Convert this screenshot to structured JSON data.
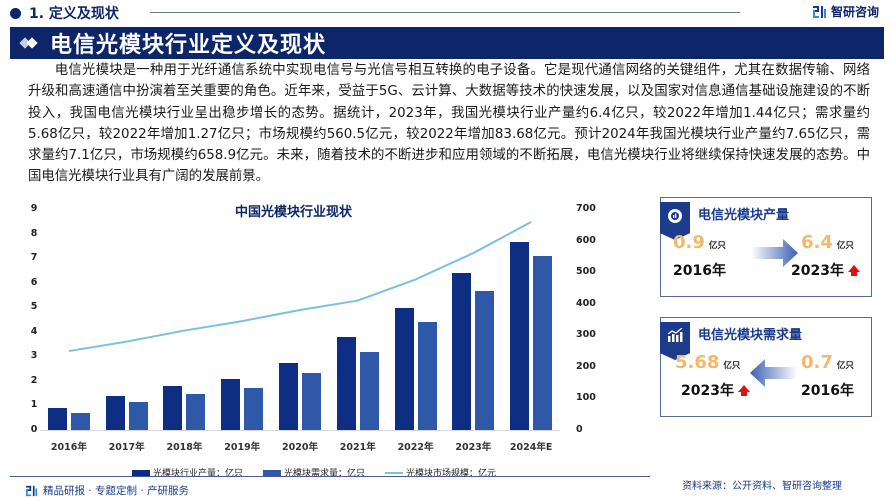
{
  "header": {
    "section_label": "1. 定义及现状",
    "brand": "智研咨询",
    "title": "电信光模块行业定义及现状"
  },
  "paragraph": "电信光模块是一种用于光纤通信系统中实现电信号与光信号相互转换的电子设备。它是现代通信网络的关键组件，尤其在数据传输、网络升级和高速通信中扮演着至关重要的角色。近年来，受益于5G、云计算、大数据等技术的快速发展，以及国家对信息通信基础设施建设的不断投入，我国电信光模块行业呈出稳步增长的态势。据统计，2023年，我国光模块行业产量约6.4亿只，较2022年增加1.44亿只；需求量约5.68亿只，较2022年增加1.27亿只；市场规模约560.5亿元，较2022年增加83.68亿元。预计2024年我国光模块行业产量约7.65亿只，需求量约7.1亿只，市场规模约658.9亿元。未来，随着技术的不断进步和应用领域的不断拓展，电信光模块行业将继续保持快速发展的态势。中国电信光模块行业具有广阔的发展前景。",
  "chart_data": {
    "type": "bar",
    "title": "中国光模块行业现状",
    "categories": [
      "2016年",
      "2017年",
      "2018年",
      "2019年",
      "2020年",
      "2021年",
      "2022年",
      "2023年",
      "2024年E"
    ],
    "series": [
      {
        "name": "光模块行业产量：亿只",
        "type": "bar",
        "axis": "left",
        "color": "#0d2e82",
        "values": [
          0.9,
          1.37,
          1.81,
          2.09,
          2.74,
          3.77,
          4.96,
          6.4,
          7.65
        ]
      },
      {
        "name": "光模块需求量：亿只",
        "type": "bar",
        "axis": "left",
        "color": "#2f58a8",
        "values": [
          0.7,
          1.12,
          1.46,
          1.7,
          2.31,
          3.19,
          4.41,
          5.68,
          7.1
        ]
      },
      {
        "name": "光模块市场规模：亿元",
        "type": "line",
        "axis": "right",
        "color": "#7cbfe0",
        "values": [
          250,
          280,
          315,
          345,
          380,
          410,
          476.8,
          560.5,
          658.9
        ]
      }
    ],
    "y_left": {
      "ticks": [
        "0",
        "1",
        "2",
        "3",
        "4",
        "5",
        "6",
        "7",
        "8",
        "9"
      ],
      "range": [
        0,
        9
      ]
    },
    "y_right": {
      "ticks": [
        "0",
        "100",
        "200",
        "300",
        "400",
        "500",
        "600",
        "700"
      ],
      "range": [
        0,
        700
      ]
    },
    "xlabel": "",
    "ylabel": "",
    "legend_position": "bottom",
    "grid": false
  },
  "cards": [
    {
      "title": "电信光模块产量",
      "icon": "pie-chart-icon",
      "left": {
        "value": "0.9",
        "unit": "亿只",
        "year": "2016年"
      },
      "right": {
        "value": "6.4",
        "unit": "亿只",
        "year": "2023年"
      },
      "arrow_direction": "right"
    },
    {
      "title": "电信光模块需求量",
      "icon": "growth-bars-icon",
      "left": {
        "value": "5.68",
        "unit": "亿只",
        "year": "2023年"
      },
      "right": {
        "value": "0.7",
        "unit": "亿只",
        "year": "2016年"
      },
      "arrow_direction": "left"
    }
  ],
  "footer": {
    "left": "精品研报 · 专题定制 · 产研服务",
    "source": "资料来源：公开资料、智研咨询整理"
  }
}
